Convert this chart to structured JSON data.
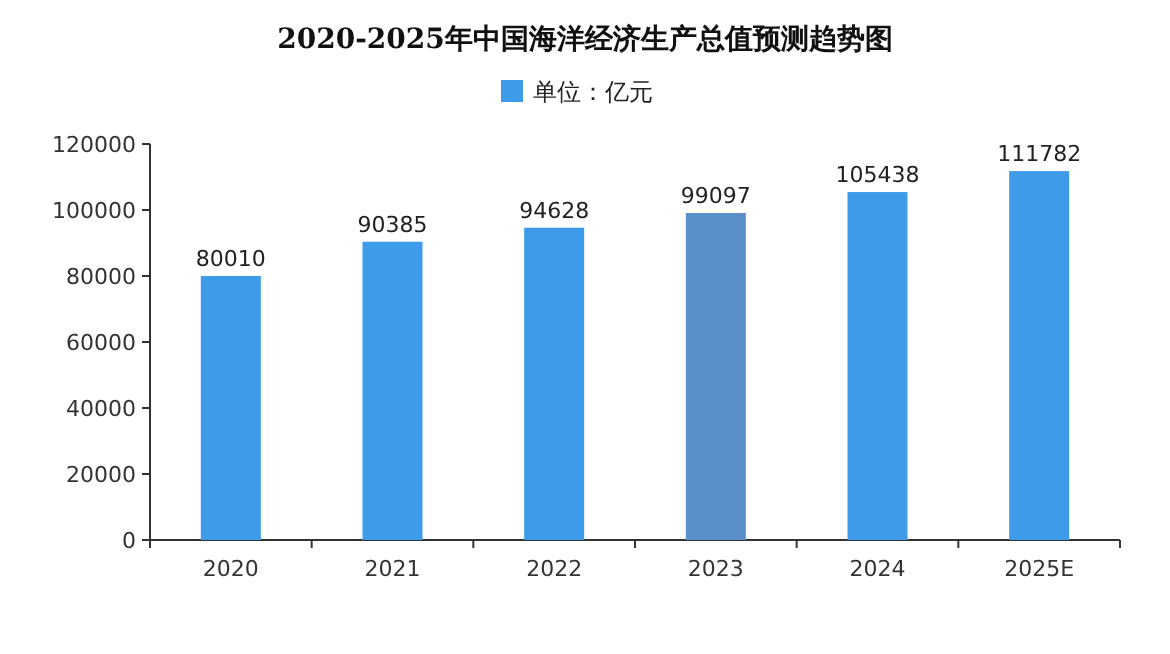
{
  "chart_data": {
    "type": "bar",
    "title": "2020-2025年中国海洋经济生产总值预测趋势图",
    "categories": [
      "2020",
      "2021",
      "2022",
      "2023",
      "2024",
      "2025E"
    ],
    "series": [
      {
        "name": "单位：亿元",
        "color": "#3d9be9",
        "colors": [
          "#3d9be9",
          "#3d9be9",
          "#3d9be9",
          "#5b8fc9",
          "#3d9be9",
          "#3d9be9"
        ],
        "values": [
          80010,
          90385,
          94628,
          99097,
          105438,
          111782
        ]
      }
    ],
    "ylim": [
      0,
      120000
    ],
    "yticks": [
      0,
      20000,
      40000,
      60000,
      80000,
      100000,
      120000
    ],
    "data_labels": true,
    "legend": "top",
    "grid": false
  }
}
